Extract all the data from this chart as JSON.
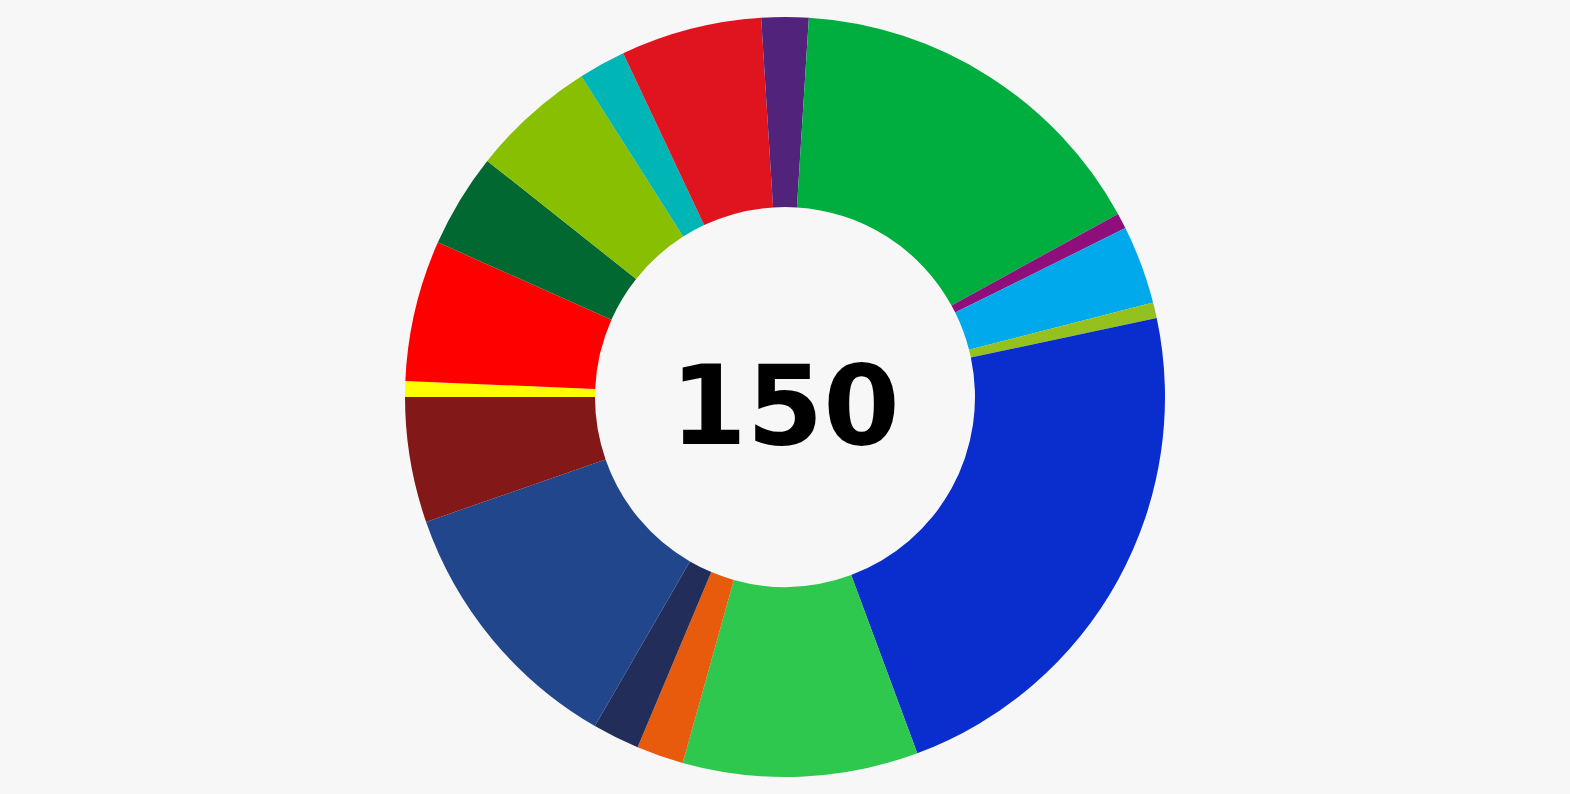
{
  "chart_data": {
    "type": "donut",
    "categories": [
      null,
      null,
      null,
      null,
      null,
      null,
      null,
      null,
      null,
      null,
      null,
      null,
      null,
      null,
      null,
      null,
      null
    ],
    "values": [
      0.67,
      6,
      4,
      5.33,
      2,
      6,
      2,
      16,
      0.67,
      3.33,
      0.67,
      22.67,
      10,
      2,
      2,
      11.33,
      5.33
    ],
    "colors": [
      "#ffff00",
      "#ff0000",
      "#006830",
      "#88bf00",
      "#00b5b5",
      "#e0141e",
      "#52237a",
      "#00ae40",
      "#8e0f7c",
      "#00a8ec",
      "#95c11f",
      "#0a2ecd",
      "#2dc84d",
      "#e85a0c",
      "#232d5a",
      "#21468b",
      "#831818"
    ],
    "annotations": [
      "150"
    ]
  }
}
